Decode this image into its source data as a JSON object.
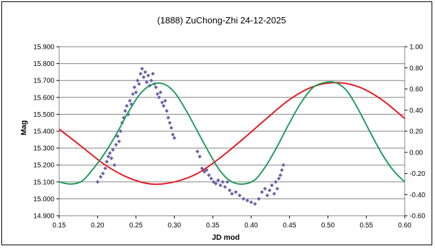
{
  "chart_data": {
    "type": "scatter",
    "title": "(1888) ZuChong-Zhi 24-12-2025",
    "xlabel": "JD mod",
    "ylabel": "Mag",
    "xlim": [
      0.15,
      0.6
    ],
    "ylim": [
      14.9,
      15.9
    ],
    "y2lim": [
      -0.6,
      1.0
    ],
    "grid": true,
    "x_ticks": [
      "0.15",
      "0.20",
      "0.25",
      "0.30",
      "0.35",
      "0.40",
      "0.45",
      "0.50",
      "0.55",
      "0.60"
    ],
    "y_ticks": [
      "15.900",
      "15.800",
      "15.700",
      "15.600",
      "15.500",
      "15.400",
      "15.300",
      "15.200",
      "15.100",
      "15.000",
      "14.900"
    ],
    "y2_ticks": [
      "1.00",
      "0.80",
      "0.60",
      "0.40",
      "0.20",
      "0.00",
      "-0.20",
      "-0.40",
      "-0.60"
    ],
    "colors": {
      "points": "#6b62a8",
      "red_curve": "#e8141b",
      "green_curve": "#1e9a5c",
      "grid": "#808080"
    },
    "series": [
      {
        "kind": "points",
        "x": [
          0.2,
          0.204,
          0.207,
          0.21,
          0.212,
          0.214,
          0.216,
          0.218,
          0.22,
          0.222,
          0.224,
          0.226,
          0.228,
          0.23,
          0.232,
          0.234,
          0.236,
          0.238,
          0.24,
          0.242,
          0.244,
          0.246,
          0.248,
          0.25,
          0.252,
          0.254,
          0.256,
          0.258,
          0.26,
          0.262,
          0.264,
          0.266,
          0.268,
          0.27,
          0.272,
          0.274,
          0.276,
          0.278,
          0.28,
          0.282,
          0.284,
          0.286,
          0.288,
          0.29,
          0.292,
          0.294,
          0.296,
          0.298,
          0.3,
          0.33,
          0.333,
          0.336,
          0.339,
          0.342,
          0.345,
          0.348,
          0.351,
          0.354,
          0.357,
          0.36,
          0.363,
          0.366,
          0.369,
          0.372,
          0.375,
          0.38,
          0.385,
          0.39,
          0.395,
          0.4,
          0.405,
          0.41,
          0.414,
          0.418,
          0.421,
          0.424,
          0.427,
          0.43,
          0.432,
          0.434,
          0.436,
          0.438,
          0.44,
          0.442
        ],
        "y": [
          15.1,
          15.13,
          15.15,
          15.18,
          15.22,
          15.25,
          15.27,
          15.24,
          15.29,
          15.2,
          15.32,
          15.37,
          15.34,
          15.4,
          15.45,
          15.48,
          15.52,
          15.55,
          15.5,
          15.58,
          15.56,
          15.62,
          15.66,
          15.63,
          15.7,
          15.68,
          15.74,
          15.77,
          15.72,
          15.75,
          15.69,
          15.73,
          15.67,
          15.7,
          15.74,
          15.68,
          15.66,
          15.62,
          15.6,
          15.63,
          15.57,
          15.55,
          15.58,
          15.52,
          15.48,
          15.45,
          15.42,
          15.38,
          15.36,
          15.28,
          15.25,
          15.18,
          15.16,
          15.17,
          15.14,
          15.12,
          15.1,
          15.09,
          15.11,
          15.08,
          15.1,
          15.07,
          15.1,
          15.05,
          15.03,
          15.04,
          15.02,
          15.0,
          14.99,
          14.98,
          14.97,
          15.0,
          15.04,
          15.06,
          15.02,
          15.05,
          15.08,
          15.03,
          15.1,
          15.06,
          15.12,
          15.14,
          15.17,
          15.2
        ]
      },
      {
        "kind": "line",
        "axis": "y2",
        "x": [
          0.15,
          0.18,
          0.21,
          0.24,
          0.27,
          0.3,
          0.33,
          0.36,
          0.39,
          0.42,
          0.45,
          0.48,
          0.51,
          0.54,
          0.57,
          0.6
        ],
        "y": [
          0.22,
          0.05,
          -0.12,
          -0.24,
          -0.3,
          -0.28,
          -0.2,
          -0.05,
          0.13,
          0.32,
          0.5,
          0.62,
          0.66,
          0.62,
          0.5,
          0.32
        ]
      },
      {
        "kind": "line",
        "axis": "y2",
        "x": [
          0.15,
          0.165,
          0.18,
          0.195,
          0.21,
          0.225,
          0.24,
          0.255,
          0.27,
          0.285,
          0.3,
          0.315,
          0.33,
          0.345,
          0.36,
          0.375,
          0.39,
          0.405,
          0.42,
          0.435,
          0.45,
          0.465,
          0.48,
          0.495,
          0.51,
          0.525,
          0.54,
          0.555,
          0.57,
          0.585,
          0.6
        ],
        "y": [
          -0.28,
          -0.3,
          -0.27,
          -0.15,
          0.0,
          0.18,
          0.38,
          0.55,
          0.64,
          0.65,
          0.57,
          0.4,
          0.2,
          0.0,
          -0.18,
          -0.28,
          -0.3,
          -0.26,
          -0.12,
          0.07,
          0.28,
          0.47,
          0.61,
          0.66,
          0.66,
          0.58,
          0.4,
          0.19,
          -0.01,
          -0.17,
          -0.28
        ]
      }
    ]
  }
}
